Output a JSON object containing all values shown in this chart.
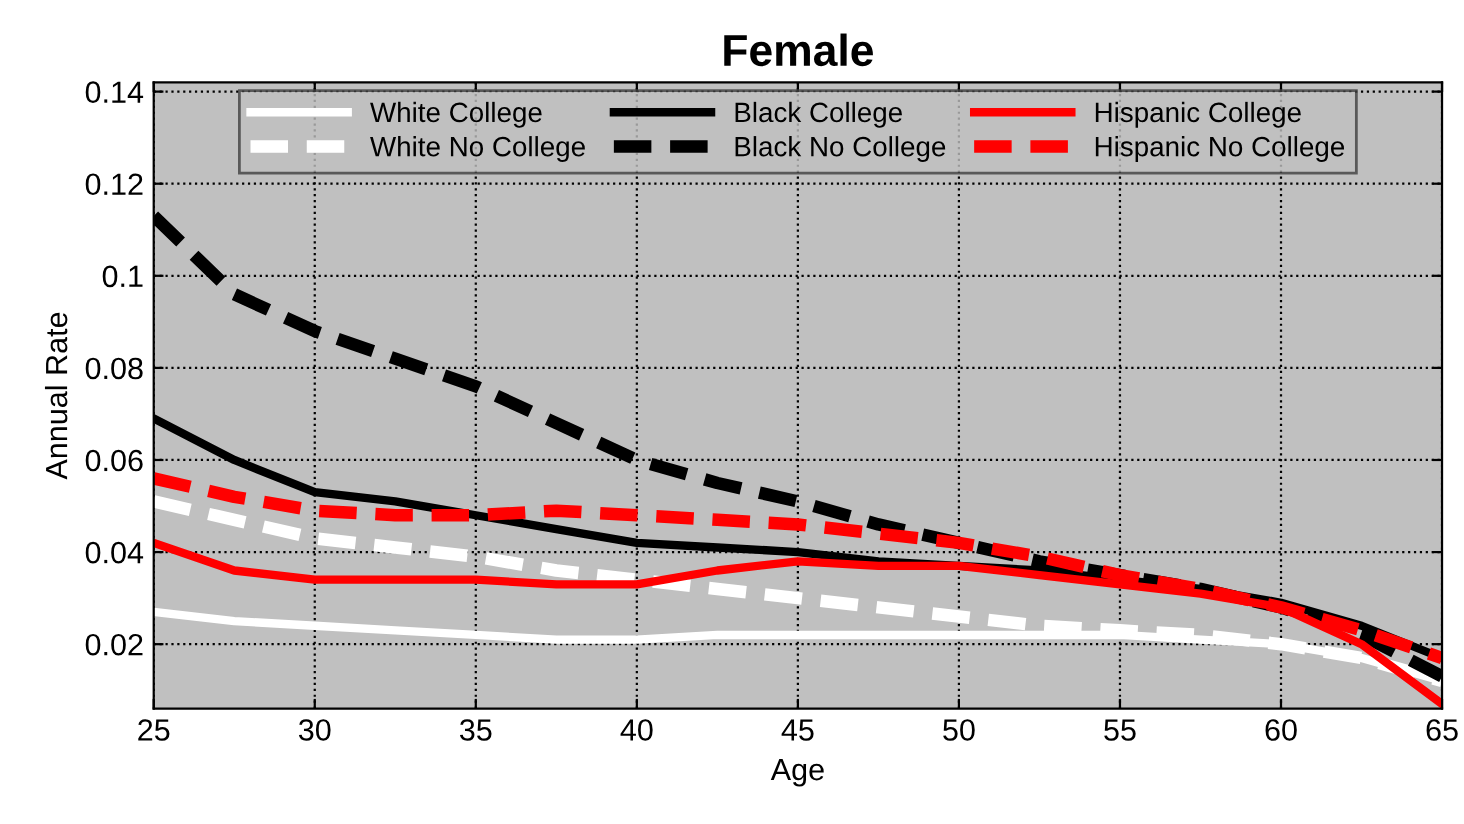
{
  "chart_data": {
    "type": "line",
    "title": "Female",
    "xlabel": "Age",
    "ylabel": "Annual Rate",
    "x": [
      25,
      27.5,
      30,
      32.5,
      35,
      37.5,
      40,
      42.5,
      45,
      47.5,
      50,
      52.5,
      55,
      57.5,
      60,
      62.5,
      65
    ],
    "series": [
      {
        "name": "White College",
        "color": "#ffffff",
        "line_style": "solid",
        "values": [
          0.027,
          0.025,
          0.024,
          0.023,
          0.022,
          0.021,
          0.021,
          0.022,
          0.022,
          0.022,
          0.022,
          0.022,
          0.022,
          0.021,
          0.02,
          0.017,
          0.012
        ]
      },
      {
        "name": "White No College",
        "color": "#ffffff",
        "line_style": "dashed",
        "values": [
          0.051,
          0.047,
          0.043,
          0.041,
          0.039,
          0.036,
          0.034,
          0.032,
          0.03,
          0.028,
          0.026,
          0.024,
          0.023,
          0.022,
          0.02,
          0.017,
          0.012
        ]
      },
      {
        "name": "Black College",
        "color": "#000000",
        "line_style": "solid",
        "values": [
          0.069,
          0.06,
          0.053,
          0.051,
          0.048,
          0.045,
          0.042,
          0.041,
          0.04,
          0.038,
          0.037,
          0.036,
          0.034,
          0.032,
          0.029,
          0.024,
          0.017
        ]
      },
      {
        "name": "Black No College",
        "color": "#000000",
        "line_style": "dashed",
        "values": [
          0.113,
          0.096,
          0.088,
          0.082,
          0.076,
          0.068,
          0.06,
          0.055,
          0.051,
          0.046,
          0.042,
          0.038,
          0.035,
          0.032,
          0.028,
          0.022,
          0.013
        ]
      },
      {
        "name": "Hispanic College",
        "color": "#ff0000",
        "line_style": "solid",
        "values": [
          0.042,
          0.036,
          0.034,
          0.034,
          0.034,
          0.033,
          0.033,
          0.036,
          0.038,
          0.037,
          0.037,
          0.035,
          0.033,
          0.031,
          0.028,
          0.02,
          0.007
        ]
      },
      {
        "name": "Hispanic No College",
        "color": "#ff0000",
        "line_style": "dashed",
        "values": [
          0.056,
          0.052,
          0.049,
          0.048,
          0.048,
          0.049,
          0.048,
          0.047,
          0.046,
          0.044,
          0.042,
          0.039,
          0.035,
          0.032,
          0.028,
          0.023,
          0.017
        ]
      }
    ],
    "xlim": [
      25,
      65
    ],
    "xticks": [
      25,
      30,
      35,
      40,
      45,
      50,
      55,
      60,
      65
    ],
    "ylim": [
      0.006,
      0.142
    ],
    "yticks": [
      {
        "value": 0.02,
        "label": "0.02"
      },
      {
        "value": 0.04,
        "label": "0.04"
      },
      {
        "value": 0.06,
        "label": "0.06"
      },
      {
        "value": 0.08,
        "label": "0.08"
      },
      {
        "value": 0.1,
        "label": "0.1"
      },
      {
        "value": 0.12,
        "label": "0.12"
      },
      {
        "value": 0.14,
        "label": "0.14"
      }
    ],
    "grid": true,
    "legend": "top",
    "marker": "none"
  }
}
